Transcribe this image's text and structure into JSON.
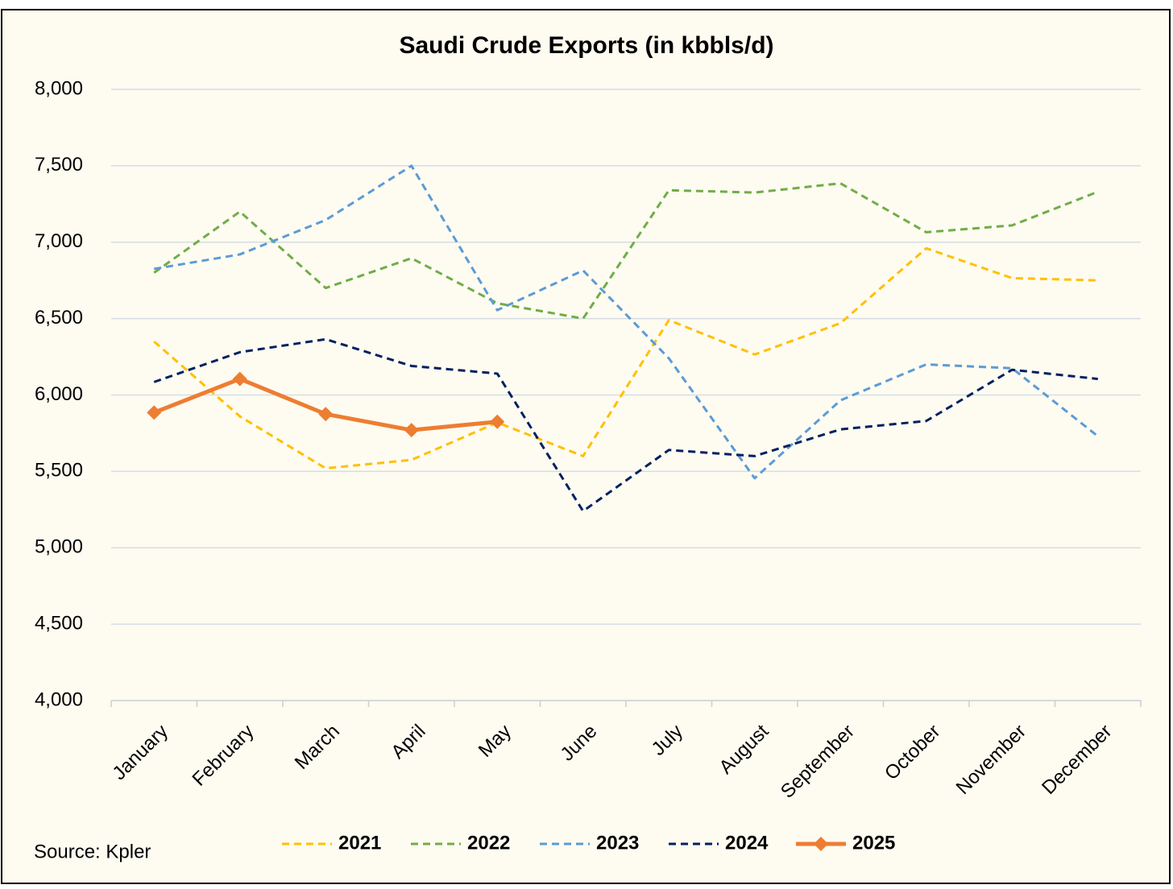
{
  "chart_data": {
    "type": "line",
    "title": "Saudi Crude Exports (in kbbls/d)",
    "source": "Source: Kpler",
    "categories": [
      "January",
      "February",
      "March",
      "April",
      "May",
      "June",
      "July",
      "August",
      "September",
      "October",
      "November",
      "December"
    ],
    "series": [
      {
        "name": "2021",
        "color": "#ffc000",
        "dashed": true,
        "values": [
          6350,
          5860,
          5520,
          5575,
          5820,
          5600,
          6490,
          6265,
          6470,
          6960,
          6765,
          6750
        ]
      },
      {
        "name": "2022",
        "color": "#70ad47",
        "dashed": true,
        "values": [
          6800,
          7200,
          6700,
          6895,
          6600,
          6500,
          7340,
          7325,
          7385,
          7065,
          7110,
          7330
        ]
      },
      {
        "name": "2023",
        "color": "#5b9bd5",
        "dashed": true,
        "values": [
          6825,
          6920,
          7145,
          7500,
          6555,
          6815,
          6240,
          5455,
          5965,
          6200,
          6175,
          5730
        ]
      },
      {
        "name": "2024",
        "color": "#002060",
        "dashed": true,
        "values": [
          6085,
          6280,
          6365,
          6190,
          6140,
          5240,
          5640,
          5600,
          5775,
          5830,
          6165,
          6105
        ]
      },
      {
        "name": "2025",
        "color": "#ed7d31",
        "dashed": false,
        "marker": "diamond",
        "values": [
          5885,
          6105,
          5875,
          5770,
          5825,
          null,
          null,
          null,
          null,
          null,
          null,
          null
        ]
      }
    ],
    "ylim": [
      4000,
      8000
    ],
    "yticks": [
      {
        "value": 4000,
        "label": "4,000"
      },
      {
        "value": 4500,
        "label": "4,500"
      },
      {
        "value": 5000,
        "label": "5,000"
      },
      {
        "value": 5500,
        "label": "5,500"
      },
      {
        "value": 6000,
        "label": "6,000"
      },
      {
        "value": 6500,
        "label": "6,500"
      },
      {
        "value": 7000,
        "label": "7,000"
      },
      {
        "value": 7500,
        "label": "7,500"
      },
      {
        "value": 8000,
        "label": "8,000"
      }
    ],
    "grid": true,
    "legend": "bottom"
  }
}
